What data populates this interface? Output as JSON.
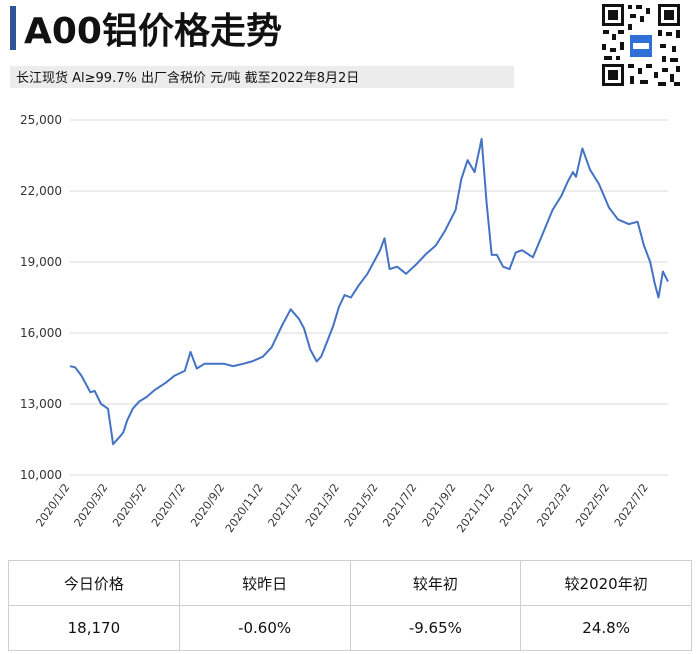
{
  "header": {
    "title": "A00铝价格走势",
    "subtitle": "长江现货 Al≥99.7% 出厂含税价 元/吨 截至2022年8月2日",
    "qr_icon": "qr-code-icon"
  },
  "colors": {
    "accent": "#2f5597",
    "line": "#4472c4",
    "grid": "#d9d9d9"
  },
  "chart_data": {
    "type": "line",
    "title": "",
    "xlabel": "",
    "ylabel": "",
    "ylim": [
      10000,
      25000
    ],
    "yticks": [
      10000,
      13000,
      16000,
      19000,
      22000,
      25000
    ],
    "ytick_labels": [
      "10,000",
      "13,000",
      "16,000",
      "19,000",
      "22,000",
      "25,000"
    ],
    "xlim": [
      "2020-01-02",
      "2022-08-02"
    ],
    "xticks": [
      "2020-01-02",
      "2020-03-02",
      "2020-05-02",
      "2020-07-02",
      "2020-09-02",
      "2020-11-02",
      "2021-01-02",
      "2021-03-02",
      "2021-05-02",
      "2021-07-02",
      "2021-09-02",
      "2021-11-02",
      "2022-01-02",
      "2022-03-02",
      "2022-05-02",
      "2022-07-02"
    ],
    "xtick_labels": [
      "2020/1/2",
      "2020/3/2",
      "2020/5/2",
      "2020/7/2",
      "2020/9/2",
      "2020/11/2",
      "2021/1/2",
      "2021/3/2",
      "2021/5/2",
      "2021/7/2",
      "2021/9/2",
      "2021/11/2",
      "2022/1/2",
      "2022/3/2",
      "2022/5/2",
      "2022/7/2"
    ],
    "grid": true,
    "series": [
      {
        "x": [
          "2020-01-02",
          "2020-01-10",
          "2020-01-20",
          "2020-02-03",
          "2020-02-10",
          "2020-02-20",
          "2020-03-02",
          "2020-03-10",
          "2020-03-20",
          "2020-03-26",
          "2020-04-01",
          "2020-04-10",
          "2020-04-20",
          "2020-05-02",
          "2020-05-15",
          "2020-06-01",
          "2020-06-15",
          "2020-07-01",
          "2020-07-10",
          "2020-07-20",
          "2020-08-01",
          "2020-08-15",
          "2020-09-01",
          "2020-09-15",
          "2020-10-01",
          "2020-10-15",
          "2020-11-01",
          "2020-11-15",
          "2020-12-01",
          "2020-12-15",
          "2020-12-28",
          "2021-01-05",
          "2021-01-15",
          "2021-01-25",
          "2021-02-01",
          "2021-02-10",
          "2021-02-20",
          "2021-03-01",
          "2021-03-10",
          "2021-03-20",
          "2021-04-01",
          "2021-04-15",
          "2021-04-25",
          "2021-05-05",
          "2021-05-12",
          "2021-05-20",
          "2021-06-01",
          "2021-06-15",
          "2021-07-01",
          "2021-07-15",
          "2021-08-01",
          "2021-08-15",
          "2021-09-01",
          "2021-09-10",
          "2021-09-20",
          "2021-10-01",
          "2021-10-12",
          "2021-10-20",
          "2021-10-28",
          "2021-11-05",
          "2021-11-15",
          "2021-11-25",
          "2021-12-05",
          "2021-12-15",
          "2022-01-01",
          "2022-01-15",
          "2022-02-01",
          "2022-02-15",
          "2022-02-25",
          "2022-03-05",
          "2022-03-10",
          "2022-03-20",
          "2022-04-01",
          "2022-04-15",
          "2022-05-01",
          "2022-05-15",
          "2022-06-01",
          "2022-06-15",
          "2022-06-25",
          "2022-07-05",
          "2022-07-12",
          "2022-07-18",
          "2022-07-25",
          "2022-08-02"
        ],
        "y": [
          14600,
          14550,
          14200,
          13500,
          13550,
          13000,
          12800,
          11300,
          11600,
          11800,
          12300,
          12800,
          13100,
          13300,
          13600,
          13900,
          14200,
          14400,
          15200,
          14500,
          14700,
          14700,
          14700,
          14600,
          14700,
          14800,
          15000,
          15400,
          16300,
          17000,
          16600,
          16200,
          15300,
          14800,
          15000,
          15600,
          16300,
          17100,
          17600,
          17500,
          18000,
          18500,
          19000,
          19500,
          20000,
          18700,
          18800,
          18500,
          18900,
          19300,
          19700,
          20300,
          21200,
          22500,
          23300,
          22800,
          24200,
          21500,
          19300,
          19300,
          18800,
          18700,
          19400,
          19500,
          19200,
          20100,
          21200,
          21800,
          22400,
          22800,
          22600,
          23800,
          22900,
          22300,
          21300,
          20800,
          20600,
          20700,
          19700,
          19000,
          18100,
          17500,
          18600,
          18170
        ]
      }
    ]
  },
  "table": {
    "headers": [
      "今日价格",
      "较昨日",
      "较年初",
      "较2020年初"
    ],
    "values": [
      "18,170",
      "-0.60%",
      "-9.65%",
      "24.8%"
    ]
  }
}
